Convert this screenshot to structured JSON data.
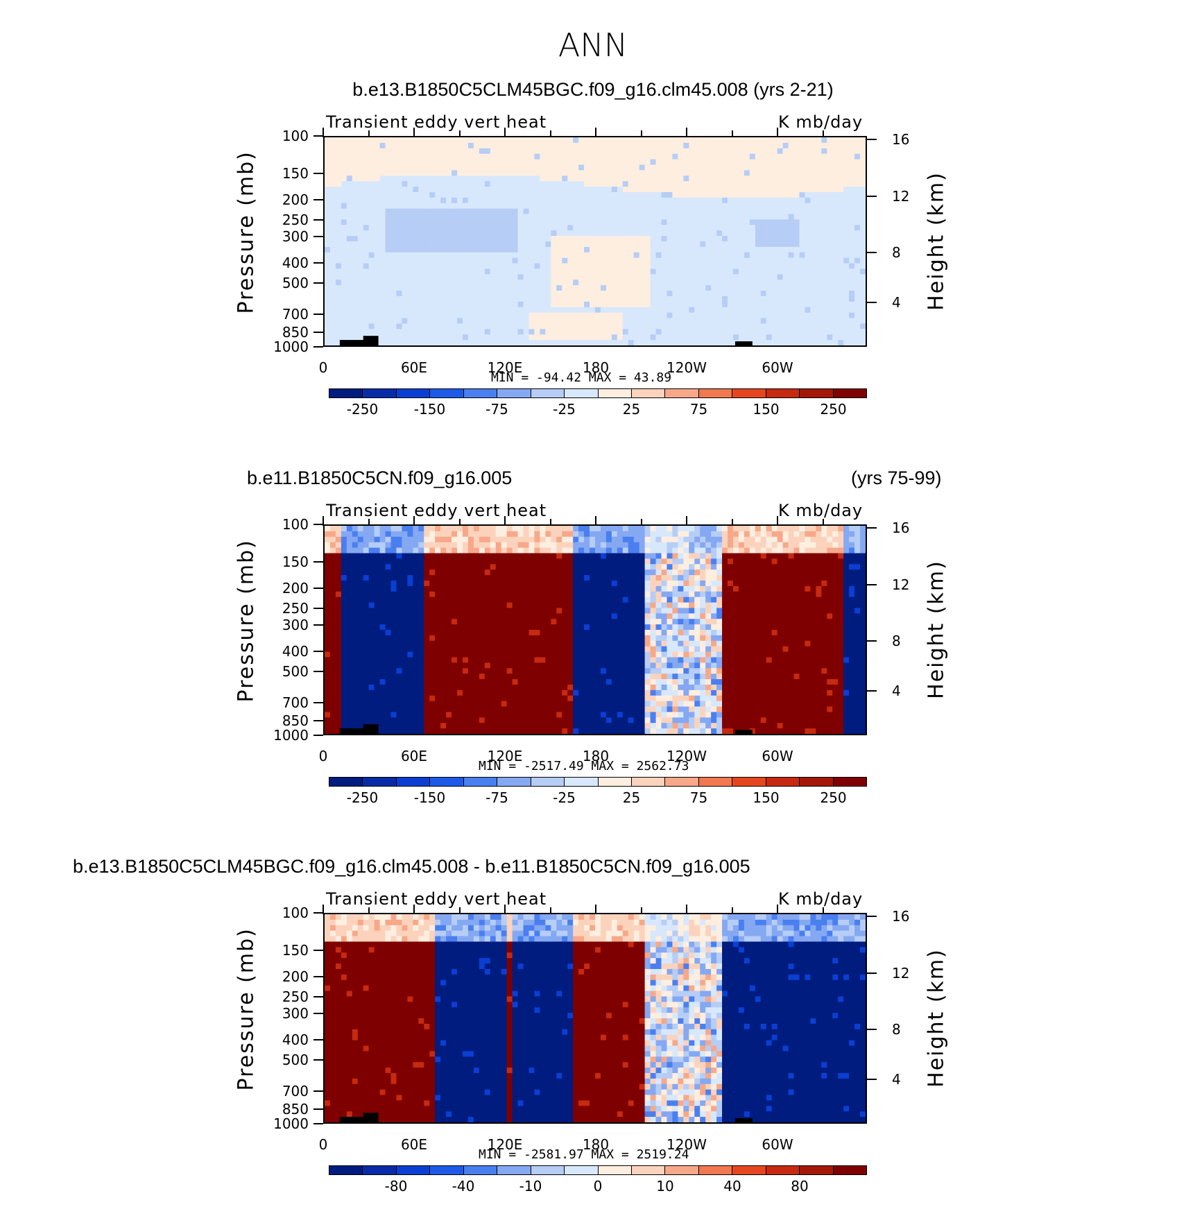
{
  "page_title": "ANN",
  "colorbar_colors": [
    "#001c7f",
    "#0a2ba7",
    "#0b3fd3",
    "#1d5ae8",
    "#4a7ff0",
    "#85a8f2",
    "#b6cdf6",
    "#d8e8fc",
    "#fdeee0",
    "#fbd3bd",
    "#f7a889",
    "#f27850",
    "#e6461f",
    "#c62a10",
    "#a41808",
    "#7f0000"
  ],
  "chart_data": [
    {
      "type": "heatmap",
      "title": "b.e13.B1850C5CLM45BGC.f09_g16.clm45.008 (yrs 2-21)",
      "title_left": "",
      "title_right": "",
      "subtitle_left": "Transient eddy vert heat",
      "subtitle_right": "K mb/day",
      "ylabel": "Pressure (mb)",
      "ylabel_right": "Height (km)",
      "yticks": [
        "100",
        "150",
        "200",
        "250",
        "300",
        "400",
        "500",
        "700",
        "850",
        "1000"
      ],
      "yticks_right": [
        "16",
        "12",
        "8",
        "4"
      ],
      "xticks": [
        "0",
        "60E",
        "120E",
        "180",
        "120W",
        "60W"
      ],
      "minmax": "MIN = -94.42   MAX =   43.89",
      "colorbar_labels": [
        "-250",
        "-150",
        "-75",
        "-25",
        "25",
        "75",
        "150",
        "250"
      ],
      "pattern": "weak"
    },
    {
      "type": "heatmap",
      "title": "",
      "title_left": "b.e11.B1850C5CN.f09_g16.005",
      "title_right": "(yrs 75-99)",
      "subtitle_left": "Transient eddy vert heat",
      "subtitle_right": "K mb/day",
      "ylabel": "Pressure (mb)",
      "ylabel_right": "Height (km)",
      "yticks": [
        "100",
        "150",
        "200",
        "250",
        "300",
        "400",
        "500",
        "700",
        "850",
        "1000"
      ],
      "yticks_right": [
        "16",
        "12",
        "8",
        "4"
      ],
      "xticks": [
        "0",
        "60E",
        "120E",
        "180",
        "120W",
        "60W"
      ],
      "minmax": "MIN = -2517.49   MAX = 2562.73",
      "colorbar_labels": [
        "-250",
        "-150",
        "-75",
        "-25",
        "25",
        "75",
        "150",
        "250"
      ],
      "pattern": "strong"
    },
    {
      "type": "heatmap",
      "title": "b.e13.B1850C5CLM45BGC.f09_g16.clm45.008 - b.e11.B1850C5CN.f09_g16.005",
      "title_left": "",
      "title_right": "",
      "subtitle_left": "Transient eddy vert heat",
      "subtitle_right": "K mb/day",
      "ylabel": "Pressure (mb)",
      "ylabel_right": "Height (km)",
      "yticks": [
        "100",
        "150",
        "200",
        "250",
        "300",
        "400",
        "500",
        "700",
        "850",
        "1000"
      ],
      "yticks_right": [
        "16",
        "12",
        "8",
        "4"
      ],
      "xticks": [
        "0",
        "60E",
        "120E",
        "180",
        "120W",
        "60W"
      ],
      "minmax": "MIN = -2581.97   MAX = 2519.24",
      "colorbar_labels": [
        "-80",
        "-40",
        "-10",
        "0",
        "10",
        "40",
        "80"
      ],
      "pattern": "diff"
    }
  ]
}
